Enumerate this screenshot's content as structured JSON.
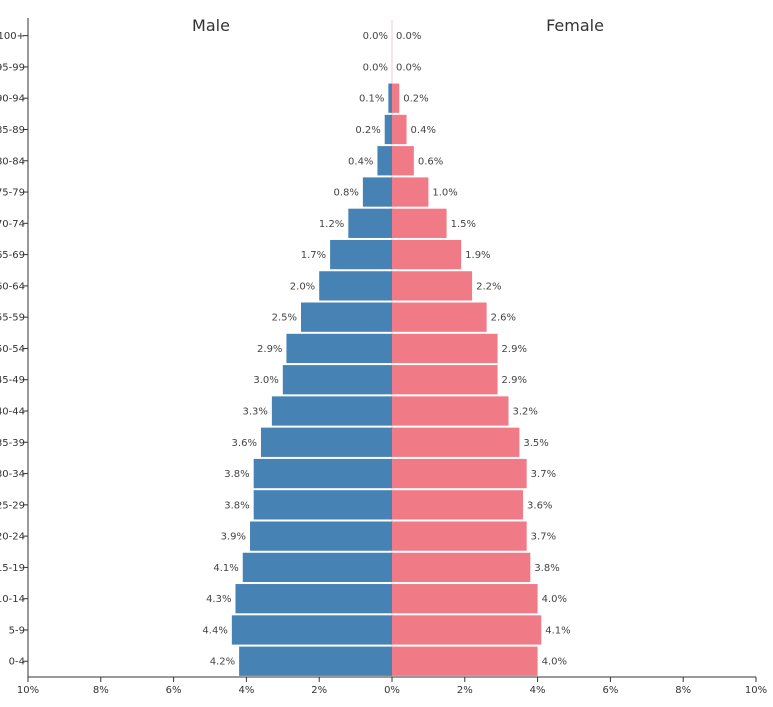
{
  "chart_data": {
    "type": "bar",
    "orientation": "horizontal",
    "layout": "population-pyramid",
    "categories": [
      "100+",
      "95-99",
      "90-94",
      "85-89",
      "80-84",
      "75-79",
      "70-74",
      "65-69",
      "60-64",
      "55-59",
      "50-54",
      "45-49",
      "40-44",
      "35-39",
      "30-34",
      "25-29",
      "20-24",
      "15-19",
      "10-14",
      "5-9",
      "0-4"
    ],
    "category_labels_visible": [
      "100+",
      "95-99",
      "90-94",
      "85-89",
      "80-84",
      "75-79",
      "70-74",
      "65-69",
      "60-64",
      "55-59",
      "50-54",
      "45-49",
      "40-44",
      "35-39",
      "30-34",
      "25-29",
      "20-24",
      "15-19",
      "10-14",
      "5-9",
      "0-4"
    ],
    "series": [
      {
        "name": "Male",
        "side": "left",
        "color": "#4682b4",
        "values": [
          0.0,
          0.0,
          0.1,
          0.2,
          0.4,
          0.8,
          1.2,
          1.7,
          2.0,
          2.5,
          2.9,
          3.0,
          3.3,
          3.6,
          3.8,
          3.8,
          3.9,
          4.1,
          4.3,
          4.4,
          4.2
        ],
        "labels": [
          "0.0%",
          "0.0%",
          "0.1%",
          "0.2%",
          "0.4%",
          "0.8%",
          "1.2%",
          "1.7%",
          "2.0%",
          "2.5%",
          "2.9%",
          "3.0%",
          "3.3%",
          "3.6%",
          "3.8%",
          "3.8%",
          "3.9%",
          "4.1%",
          "4.3%",
          "4.4%",
          "4.2%"
        ]
      },
      {
        "name": "Female",
        "side": "right",
        "color": "#f07b87",
        "values": [
          0.0,
          0.0,
          0.2,
          0.4,
          0.6,
          1.0,
          1.5,
          1.9,
          2.2,
          2.6,
          2.9,
          2.9,
          3.2,
          3.5,
          3.7,
          3.6,
          3.7,
          3.8,
          4.0,
          4.1,
          4.0
        ],
        "labels": [
          "0.0%",
          "0.0%",
          "0.2%",
          "0.4%",
          "0.6%",
          "1.0%",
          "1.5%",
          "1.9%",
          "2.2%",
          "2.6%",
          "2.9%",
          "2.9%",
          "3.2%",
          "3.5%",
          "3.7%",
          "3.6%",
          "3.7%",
          "3.8%",
          "4.0%",
          "4.1%",
          "4.0%"
        ]
      }
    ],
    "xlim": [
      -10,
      10
    ],
    "x_ticks": [
      -10,
      -8,
      -6,
      -4,
      -2,
      0,
      2,
      4,
      6,
      8,
      10
    ],
    "x_tick_labels": [
      "10%",
      "8%",
      "6%",
      "4%",
      "2%",
      "0%",
      "2%",
      "4%",
      "6%",
      "8%",
      "10%"
    ],
    "grid": false
  }
}
